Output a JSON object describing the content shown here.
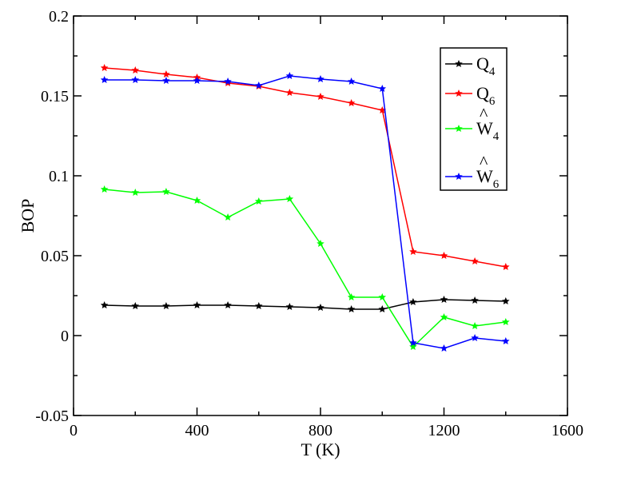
{
  "chart_data": {
    "type": "line",
    "xlabel": "T (K)",
    "ylabel": "BOP",
    "xlim": [
      0,
      1600
    ],
    "ylim": [
      -0.05,
      0.2
    ],
    "xticks": [
      0,
      400,
      800,
      1200,
      1600
    ],
    "xtick_labels": [
      "0",
      "400",
      "800",
      "1200",
      "1600"
    ],
    "yticks": [
      -0.05,
      0,
      0.05,
      0.1,
      0.15,
      0.2
    ],
    "ytick_labels": [
      "-0.05",
      "0",
      "0.05",
      "0.1",
      "0.15",
      "0.2"
    ],
    "grid": false,
    "legend_position": "top-right",
    "x": [
      100,
      200,
      300,
      400,
      500,
      600,
      700,
      800,
      900,
      1000,
      1100,
      1200,
      1300,
      1400
    ],
    "series": [
      {
        "name": "Q4",
        "legend": {
          "base": "Q",
          "sub": "4",
          "hat": false
        },
        "color": "#000000",
        "values": [
          0.019,
          0.0185,
          0.0185,
          0.019,
          0.019,
          0.0185,
          0.018,
          0.0175,
          0.0165,
          0.0165,
          0.021,
          0.0225,
          0.022,
          0.0215
        ]
      },
      {
        "name": "Q6",
        "legend": {
          "base": "Q",
          "sub": "6",
          "hat": false
        },
        "color": "#ff0000",
        "values": [
          0.1675,
          0.166,
          0.1635,
          0.1615,
          0.158,
          0.156,
          0.152,
          0.1495,
          0.1455,
          0.141,
          0.0525,
          0.05,
          0.0465,
          0.043
        ]
      },
      {
        "name": "Ŵ4",
        "legend": {
          "base": "W",
          "sub": "4",
          "hat": true
        },
        "color": "#00ff00",
        "values": [
          0.0915,
          0.0895,
          0.09,
          0.0845,
          0.074,
          0.084,
          0.0855,
          0.0575,
          0.024,
          0.024,
          -0.007,
          0.0115,
          0.006,
          0.0085
        ]
      },
      {
        "name": "Ŵ6",
        "legend": {
          "base": "W",
          "sub": "6",
          "hat": true
        },
        "color": "#0000ff",
        "values": [
          0.16,
          0.16,
          0.1595,
          0.1595,
          0.159,
          0.1565,
          0.1625,
          0.1605,
          0.159,
          0.1545,
          -0.0045,
          -0.008,
          -0.0015,
          -0.0035
        ]
      }
    ]
  }
}
